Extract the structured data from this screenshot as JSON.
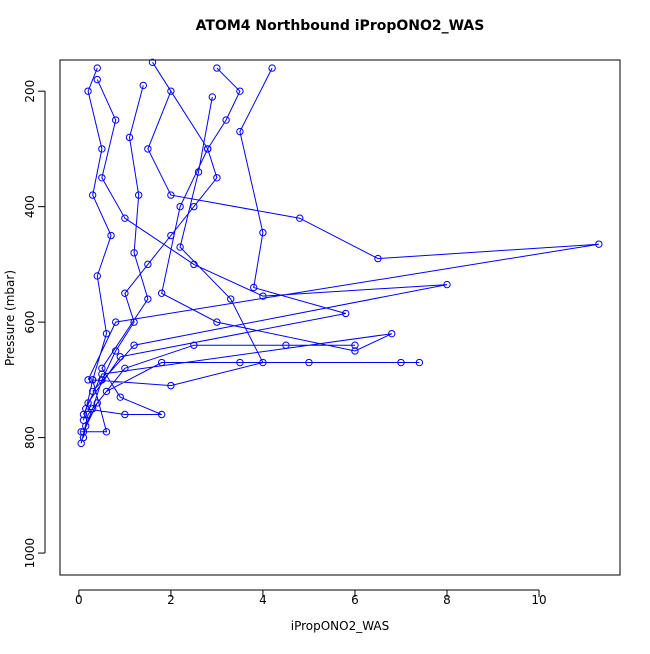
{
  "chart_data": {
    "type": "line",
    "title": "ATOM4 Northbound iPropONO2_WAS",
    "x_label": "iPropONO2_WAS",
    "y_label": "Pressure (mbar)",
    "color": "#0000ff",
    "marker": "open-circle",
    "xlim": [
      -0.41,
      11.76
    ],
    "ylim": [
      1038,
      146
    ],
    "xticks": [
      0,
      2,
      4,
      6,
      8,
      10
    ],
    "yticks": [
      200,
      400,
      600,
      800,
      1000
    ],
    "x": [
      0.1,
      0.15,
      0.3,
      0.5,
      0.8,
      1.2,
      1.0,
      1.5,
      2.0,
      2.5,
      3.0,
      2.8,
      3.2,
      3.5,
      3.0,
      null,
      0.05,
      0.2,
      0.6,
      1.8,
      3.5,
      5.0,
      7.0,
      7.4,
      null,
      0.1,
      0.4,
      1.0,
      2.5,
      4.5,
      6.0,
      null,
      0.2,
      0.8,
      11.3,
      6.5,
      4.8,
      2.0,
      1.5,
      2.0,
      null,
      0.3,
      1.2,
      8.0,
      4.0,
      2.5,
      1.0,
      0.5,
      0.8,
      0.4,
      null,
      0.1,
      0.5,
      6.8,
      6.0,
      3.0,
      1.8,
      2.2,
      2.8,
      1.6,
      null,
      0.1,
      0.3,
      0.6,
      0.4,
      0.7,
      0.3,
      0.5,
      0.2,
      0.4,
      null,
      0.15,
      1.0,
      1.8,
      0.9,
      0.5,
      1.5,
      1.2,
      1.3,
      1.1,
      1.4,
      null,
      0.05,
      0.6,
      0.3,
      2.0,
      4.0,
      3.3,
      2.2,
      2.6,
      2.9,
      null,
      0.2,
      0.9,
      5.8,
      3.8,
      4.0,
      3.5,
      4.2
    ],
    "values": [
      800,
      780,
      750,
      700,
      650,
      600,
      550,
      500,
      450,
      400,
      350,
      300,
      250,
      200,
      160,
      null,
      810,
      760,
      720,
      670,
      670,
      670,
      670,
      670,
      null,
      790,
      740,
      680,
      640,
      640,
      640,
      null,
      700,
      600,
      465,
      490,
      420,
      380,
      300,
      200,
      null,
      720,
      640,
      535,
      555,
      500,
      420,
      350,
      250,
      180,
      null,
      760,
      690,
      620,
      650,
      600,
      550,
      400,
      300,
      150,
      null,
      770,
      700,
      620,
      520,
      450,
      380,
      300,
      200,
      160,
      null,
      750,
      760,
      760,
      730,
      680,
      560,
      480,
      380,
      280,
      190,
      null,
      790,
      790,
      700,
      710,
      670,
      560,
      470,
      340,
      210,
      null,
      740,
      660,
      585,
      540,
      445,
      270,
      160
    ]
  }
}
